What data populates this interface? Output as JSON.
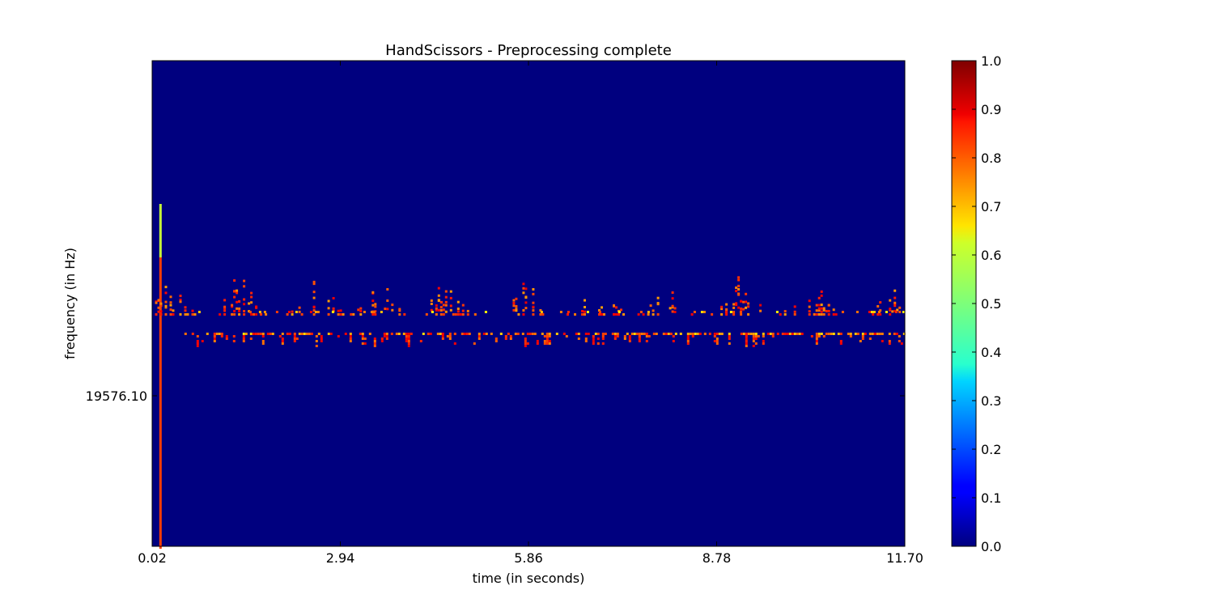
{
  "chart_data": {
    "type": "heatmap",
    "title": "HandScissors - Preprocessing complete",
    "xlabel": "time (in seconds)",
    "ylabel": "frequency (in Hz)",
    "x_ticks": [
      "0.02",
      "2.94",
      "5.86",
      "8.78",
      "11.70"
    ],
    "x_tick_values": [
      0.02,
      2.94,
      5.86,
      8.78,
      11.7
    ],
    "xlim": [
      0.02,
      11.7
    ],
    "y_ticks": [
      "19576.10"
    ],
    "y_tick_fraction": 0.31,
    "colormap": "jet",
    "background_value": 0.0,
    "colorbar": {
      "ticks": [
        "0.0",
        "0.1",
        "0.2",
        "0.3",
        "0.4",
        "0.5",
        "0.6",
        "0.7",
        "0.8",
        "0.9",
        "1.0"
      ],
      "tick_values": [
        0,
        0.1,
        0.2,
        0.3,
        0.4,
        0.5,
        0.6,
        0.7,
        0.8,
        0.9,
        1.0
      ],
      "range": [
        0,
        1
      ]
    },
    "structure": {
      "onset_band": {
        "time": 0.13,
        "frequency_fraction_range": [
          0.0,
          0.71
        ],
        "value_range": [
          0.5,
          0.85
        ]
      },
      "upper_band": {
        "frequency_fraction_center": 0.49,
        "peak_times": [
          0.25,
          1.35,
          2.55,
          3.5,
          4.6,
          5.8,
          6.9,
          8.0,
          9.1,
          10.2,
          11.6
        ]
      },
      "lower_band": {
        "frequency_fraction_center": 0.44
      }
    },
    "grid": false,
    "legend": "colorbar-right"
  }
}
